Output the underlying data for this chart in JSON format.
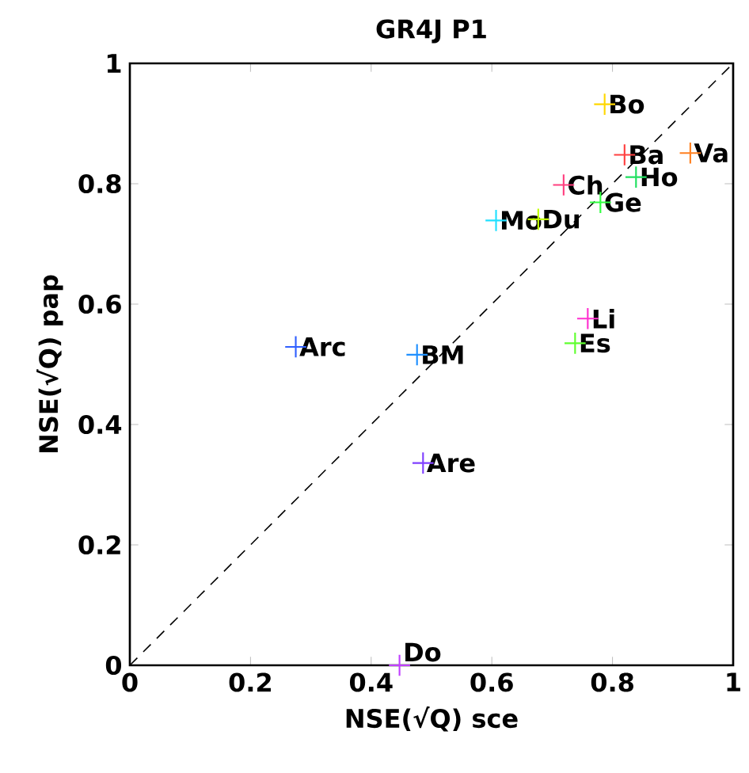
{
  "chart_data": {
    "type": "scatter",
    "title": "GR4J P1",
    "xlabel": "NSE(√Q) sce",
    "ylabel": "NSE(√Q) pap",
    "xlim": [
      0,
      1
    ],
    "ylim": [
      0,
      1
    ],
    "xticks": [
      0,
      0.2,
      0.4,
      0.6,
      0.8,
      1
    ],
    "yticks": [
      0,
      0.2,
      0.4,
      0.6,
      0.8,
      1
    ],
    "grid": false,
    "marker": "cross",
    "series": [
      {
        "x": [
          0.787,
          0.82,
          0.929,
          0.839,
          0.719,
          0.78,
          0.607,
          0.677,
          0.759,
          0.275,
          0.476,
          0.738,
          0.486,
          0.447
        ],
        "values": [
          0.932,
          0.848,
          0.851,
          0.811,
          0.798,
          0.769,
          0.739,
          0.741,
          0.576,
          0.529,
          0.516,
          0.535,
          0.336,
          0.0
        ],
        "colors": [
          "#ffd700",
          "#ff4040",
          "#ff8020",
          "#20e060",
          "#ff4080",
          "#30ff40",
          "#20e0ff",
          "#c0ff00",
          "#ff30d0",
          "#3060ff",
          "#2090ff",
          "#60ff30",
          "#8040ff",
          "#c040ff"
        ]
      },
      {
        "type": "line",
        "x": [
          0,
          1
        ],
        "values": [
          0,
          1
        ],
        "color": "#000000",
        "line_style": "dashed",
        "marker": "none"
      }
    ],
    "annotations": [
      {
        "text": "Bo",
        "x": 0.787,
        "y": 0.932
      },
      {
        "text": "Ba",
        "x": 0.82,
        "y": 0.848
      },
      {
        "text": "Va",
        "x": 0.929,
        "y": 0.851
      },
      {
        "text": "Ho",
        "x": 0.839,
        "y": 0.811
      },
      {
        "text": "Ch",
        "x": 0.719,
        "y": 0.798
      },
      {
        "text": "Ge",
        "x": 0.78,
        "y": 0.769
      },
      {
        "text": "Mo",
        "x": 0.607,
        "y": 0.739
      },
      {
        "text": "Du",
        "x": 0.677,
        "y": 0.741
      },
      {
        "text": "Li",
        "x": 0.759,
        "y": 0.576
      },
      {
        "text": "Arc",
        "x": 0.275,
        "y": 0.529
      },
      {
        "text": "BM",
        "x": 0.476,
        "y": 0.516
      },
      {
        "text": "Es",
        "x": 0.738,
        "y": 0.535
      },
      {
        "text": "Are",
        "x": 0.486,
        "y": 0.336
      },
      {
        "text": "Do",
        "x": 0.447,
        "y": 0.0
      }
    ]
  }
}
